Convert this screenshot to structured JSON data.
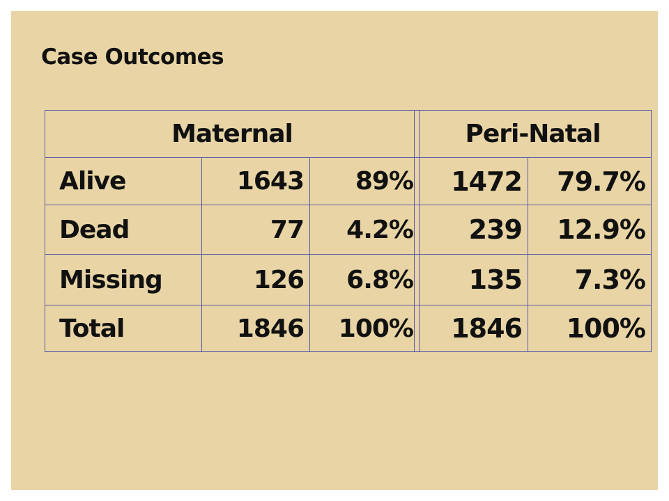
{
  "title": "Case Outcomes",
  "maternal": {
    "header": "Maternal",
    "rows": [
      {
        "label": "Alive",
        "count": "1643",
        "percent": "89%"
      },
      {
        "label": "Dead",
        "count": "77",
        "percent": "4.2%"
      },
      {
        "label": "Missing",
        "count": "126",
        "percent": "6.8%"
      },
      {
        "label": "Total",
        "count": "1846",
        "percent": "100%"
      }
    ]
  },
  "perinatal": {
    "header": "Peri-Natal",
    "rows": [
      {
        "count": "1472",
        "percent": "79.7%"
      },
      {
        "count": "239",
        "percent": "12.9%"
      },
      {
        "count": "135",
        "percent": "7.3%"
      },
      {
        "count": "1846",
        "percent": "100%"
      }
    ]
  }
}
